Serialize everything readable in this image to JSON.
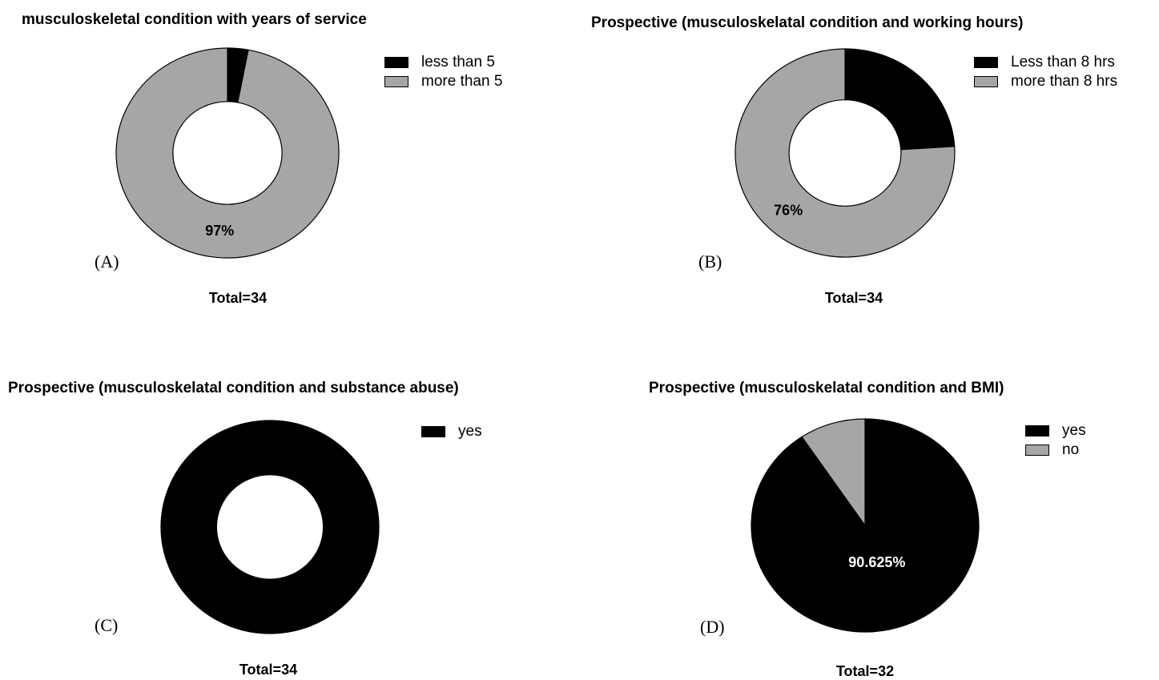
{
  "chart_data": [
    {
      "panel": "(A)",
      "type": "donut",
      "title": "musculoskeletal condition with years of service",
      "total_label": "Total=34",
      "slices": [
        {
          "name": "less than 5",
          "value": 3,
          "color": "#000000"
        },
        {
          "name": "more than 5",
          "value": 97,
          "color": "#a6a6a6",
          "label": "97%"
        }
      ]
    },
    {
      "panel": "(B)",
      "type": "donut",
      "title": "Prospective (musculoskelatal condition and working hours)",
      "total_label": "Total=34",
      "slices": [
        {
          "name": "Less than 8 hrs",
          "value": 24,
          "color": "#000000"
        },
        {
          "name": "more than 8 hrs",
          "value": 76,
          "color": "#a6a6a6",
          "label": "76%"
        }
      ]
    },
    {
      "panel": "(C)",
      "type": "donut",
      "title": "Prospective (musculoskelatal condition and substance abuse)",
      "total_label": "Total=34",
      "slices": [
        {
          "name": "yes",
          "value": 100,
          "color": "#000000"
        }
      ]
    },
    {
      "panel": "(D)",
      "type": "pie",
      "title": "Prospective (musculoskelatal condition and BMI)",
      "total_label": "Total=32",
      "slices": [
        {
          "name": "yes",
          "value": 90.625,
          "color": "#000000",
          "label": "90.625%"
        },
        {
          "name": "no",
          "value": 9.375,
          "color": "#a6a6a6"
        }
      ]
    }
  ]
}
